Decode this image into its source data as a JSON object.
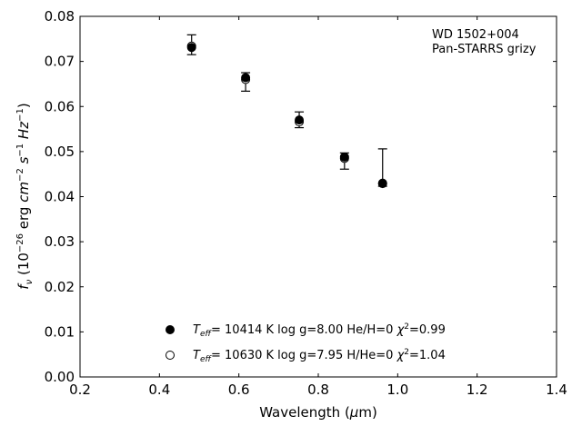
{
  "chart_data": {
    "type": "scatter",
    "annotation": [
      "WD 1502+004",
      "Pan-STARRS grizy"
    ],
    "xlabel": "Wavelength (μm)",
    "ylabel": "f_ν (10^-26 erg cm^-2 s^-1 Hz^-1)",
    "xlim": [
      0.2,
      1.4
    ],
    "ylim": [
      0.0,
      0.08
    ],
    "xticks": [
      "0.2",
      "0.4",
      "0.6",
      "0.8",
      "1.0",
      "1.2",
      "1.4"
    ],
    "yticks": [
      "0.00",
      "0.01",
      "0.02",
      "0.03",
      "0.04",
      "0.05",
      "0.06",
      "0.07",
      "0.08"
    ],
    "grid": false,
    "legend_position": "bottom-center",
    "observed": {
      "x": [
        0.481,
        0.617,
        0.752,
        0.866,
        0.962
      ],
      "y": [
        0.0736,
        0.0655,
        0.057,
        0.048,
        0.0433
      ],
      "yerr_low": [
        0.0715,
        0.0634,
        0.0553,
        0.0461,
        0.0423
      ],
      "yerr_high": [
        0.0759,
        0.0675,
        0.0588,
        0.0497,
        0.0506
      ]
    },
    "series": [
      {
        "marker": "filled",
        "label_parts": {
          "teff": "= 10414 K  log g=8.00  He/H=0  ",
          "chi": "=0.99"
        },
        "y": [
          0.0731,
          0.0664,
          0.057,
          0.0488,
          0.043
        ]
      },
      {
        "marker": "open",
        "label_parts": {
          "teff": "= 10630 K  log g=7.95  H/He=0  ",
          "chi": "=1.04"
        },
        "y": [
          0.0734,
          0.066,
          0.0566,
          0.0485,
          0.0429
        ]
      }
    ],
    "colors": {
      "marker": "#000000",
      "axis": "#000000",
      "background": "#ffffff"
    }
  }
}
